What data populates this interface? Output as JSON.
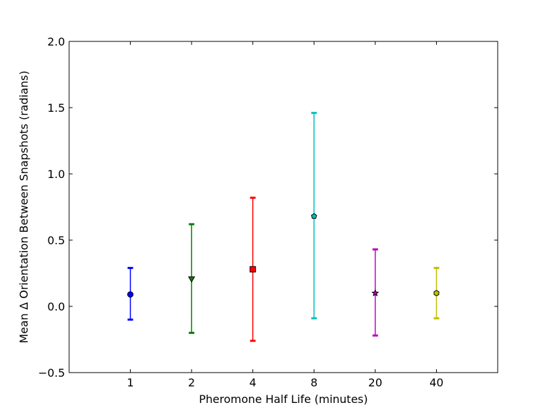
{
  "chart_data": {
    "type": "scatter",
    "title": "",
    "xlabel": "Pheromone Half Life (minutes)",
    "ylabel": "Mean Δ Orientation Between Snapshots (radians)",
    "categories": [
      "1",
      "2",
      "4",
      "8",
      "20",
      "40"
    ],
    "ylim": [
      -0.5,
      2.0
    ],
    "yticks": [
      "−0.5",
      "0.0",
      "0.5",
      "1.0",
      "1.5",
      "2.0"
    ],
    "ytick_values": [
      -0.5,
      0.0,
      0.5,
      1.0,
      1.5,
      2.0
    ],
    "grid": false,
    "legend": "none",
    "series": [
      {
        "category": "1",
        "mean": 0.09,
        "lower": -0.1,
        "upper": 0.29,
        "marker": "circle",
        "color": "#0000ff"
      },
      {
        "category": "2",
        "mean": 0.21,
        "lower": -0.2,
        "upper": 0.62,
        "marker": "triangle-down",
        "color": "#008000"
      },
      {
        "category": "4",
        "mean": 0.28,
        "lower": -0.26,
        "upper": 0.82,
        "marker": "square",
        "color": "#ff0000"
      },
      {
        "category": "8",
        "mean": 0.68,
        "lower": -0.09,
        "upper": 1.46,
        "marker": "pentagon",
        "color": "#00bfbf"
      },
      {
        "category": "20",
        "mean": 0.1,
        "lower": -0.22,
        "upper": 0.43,
        "marker": "star",
        "color": "#bf00bf"
      },
      {
        "category": "40",
        "mean": 0.1,
        "lower": -0.09,
        "upper": 0.29,
        "marker": "hexagon",
        "color": "#bfbf00"
      }
    ]
  }
}
